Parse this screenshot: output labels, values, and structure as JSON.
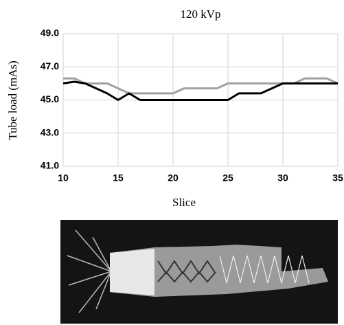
{
  "chart_data": {
    "type": "line",
    "title": "120 kVp",
    "x_label": "Slice",
    "y_label": "Tube load (mAs)",
    "x": [
      10,
      11,
      12,
      13,
      14,
      15,
      16,
      17,
      18,
      19,
      20,
      21,
      22,
      23,
      24,
      25,
      26,
      27,
      28,
      29,
      30,
      31,
      32,
      33,
      34,
      35
    ],
    "series": [
      {
        "color": "#000000",
        "values": [
          46.0,
          46.1,
          46.0,
          45.7,
          45.4,
          45.0,
          45.4,
          45.0,
          45.0,
          45.0,
          45.0,
          45.0,
          45.0,
          45.0,
          45.0,
          45.0,
          45.4,
          45.4,
          45.4,
          45.7,
          46.0,
          46.0,
          46.0,
          46.0,
          46.0,
          46.0
        ]
      },
      {
        "color": "#a0a0a0",
        "values": [
          46.3,
          46.3,
          46.0,
          46.0,
          46.0,
          45.7,
          45.4,
          45.4,
          45.4,
          45.4,
          45.4,
          45.7,
          45.7,
          45.7,
          45.7,
          46.0,
          46.0,
          46.0,
          46.0,
          46.0,
          46.0,
          46.0,
          46.3,
          46.3,
          46.3,
          46.0
        ]
      }
    ],
    "xlim": [
      10,
      35
    ],
    "xticks": [
      10,
      15,
      20,
      25,
      30,
      35
    ],
    "ylim": [
      41,
      49
    ],
    "yticks": [
      {
        "value": 41,
        "label": "41.0"
      },
      {
        "value": 43,
        "label": "43.0"
      },
      {
        "value": 45,
        "label": "45.0"
      },
      {
        "value": 47,
        "label": "47.0"
      },
      {
        "value": 49,
        "label": "49.0"
      }
    ],
    "grid": true
  }
}
